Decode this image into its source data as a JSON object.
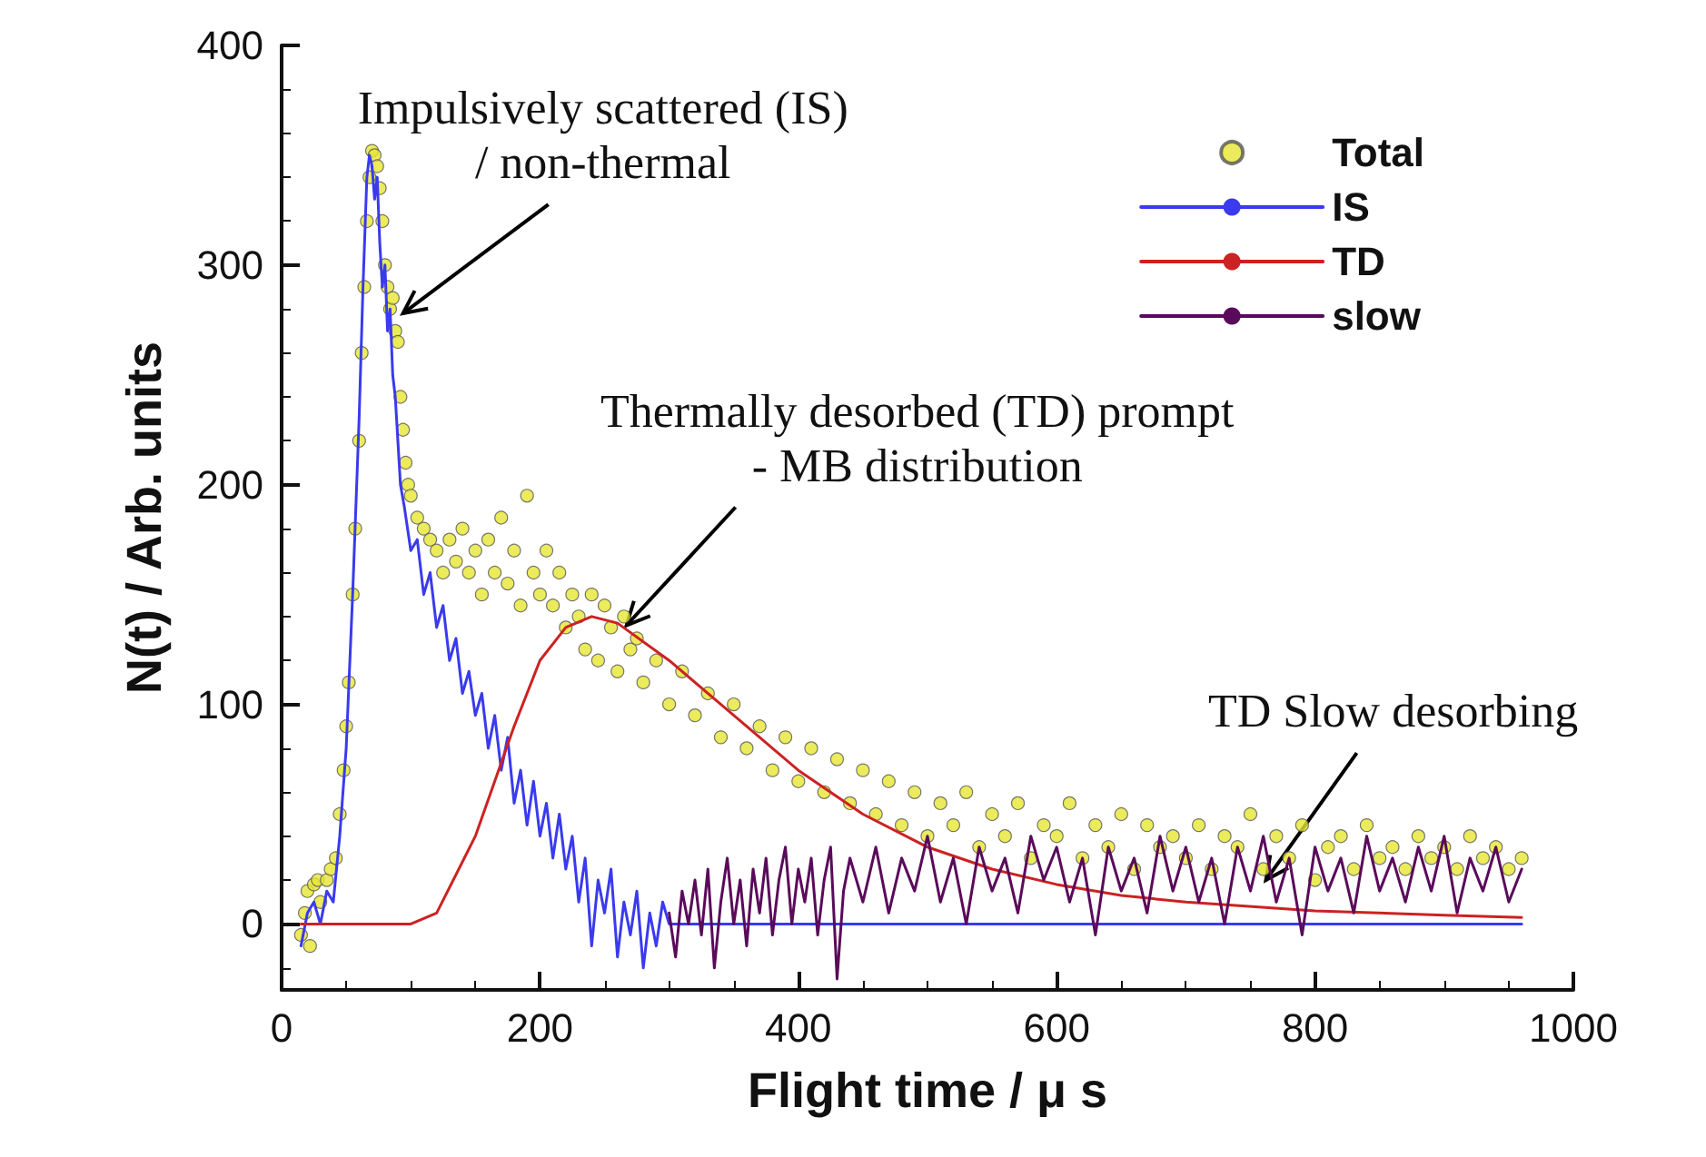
{
  "chart_data": {
    "type": "line",
    "xlabel": "Flight time / μ s",
    "ylabel": "N(t) / Arb. units",
    "xlim": [
      0,
      1000
    ],
    "xticks": [
      0,
      200,
      400,
      600,
      800,
      1000
    ],
    "ylim": [
      -30,
      400
    ],
    "yticks": [
      0,
      100,
      200,
      300,
      400
    ],
    "grid": false,
    "legend": "top right",
    "marker": "none",
    "line_style": "solid",
    "annotations": [
      {
        "text": "Impulsively scattered (IS)\n/ non-thermal",
        "x": 94,
        "y": 278
      },
      {
        "text": "Thermally desorbed (TD) prompt\n- MB distribution",
        "x": 267,
        "y": 136
      },
      {
        "text": "TD Slow desorbing",
        "x": 762,
        "y": 20
      }
    ],
    "series": [
      {
        "name": "Total",
        "type": "scatter",
        "marker": "circle",
        "color": "#e6e632",
        "x": [
          15,
          18,
          20,
          22,
          25,
          28,
          30,
          35,
          38,
          42,
          45,
          48,
          50,
          52,
          55,
          57,
          60,
          62,
          64,
          66,
          68,
          70,
          72,
          74,
          76,
          78,
          80,
          82,
          84,
          86,
          88,
          90,
          92,
          94,
          96,
          98,
          100,
          105,
          110,
          115,
          120,
          125,
          130,
          135,
          140,
          145,
          150,
          155,
          160,
          165,
          170,
          175,
          180,
          185,
          190,
          195,
          200,
          205,
          210,
          215,
          220,
          225,
          230,
          235,
          240,
          245,
          250,
          255,
          260,
          265,
          270,
          275,
          280,
          290,
          300,
          310,
          320,
          330,
          340,
          350,
          360,
          370,
          380,
          390,
          400,
          410,
          420,
          430,
          440,
          450,
          460,
          470,
          480,
          490,
          500,
          510,
          520,
          530,
          540,
          550,
          560,
          570,
          580,
          590,
          600,
          610,
          620,
          630,
          640,
          650,
          660,
          670,
          680,
          690,
          700,
          710,
          720,
          730,
          740,
          750,
          760,
          770,
          780,
          790,
          800,
          810,
          820,
          830,
          840,
          850,
          860,
          870,
          880,
          890,
          900,
          910,
          920,
          930,
          940,
          950,
          960
        ],
        "values": [
          -5,
          5,
          15,
          -10,
          18,
          20,
          10,
          20,
          25,
          30,
          50,
          70,
          90,
          110,
          150,
          180,
          220,
          260,
          290,
          320,
          340,
          352,
          350,
          345,
          335,
          320,
          300,
          290,
          280,
          285,
          270,
          265,
          240,
          225,
          210,
          200,
          195,
          185,
          180,
          175,
          170,
          160,
          175,
          165,
          180,
          160,
          170,
          150,
          175,
          160,
          185,
          155,
          170,
          145,
          195,
          160,
          150,
          170,
          145,
          160,
          135,
          150,
          140,
          125,
          150,
          120,
          145,
          135,
          115,
          140,
          125,
          130,
          110,
          120,
          100,
          115,
          95,
          105,
          85,
          100,
          80,
          90,
          70,
          85,
          65,
          80,
          60,
          75,
          55,
          70,
          50,
          65,
          45,
          60,
          40,
          55,
          45,
          60,
          35,
          50,
          40,
          55,
          30,
          45,
          40,
          55,
          30,
          45,
          35,
          50,
          25,
          45,
          35,
          40,
          30,
          45,
          25,
          40,
          35,
          50,
          25,
          40,
          30,
          45,
          20,
          35,
          40,
          25,
          45,
          30,
          35,
          25,
          40,
          30,
          35,
          25,
          40,
          30,
          35,
          25,
          30
        ]
      },
      {
        "name": "IS",
        "color": "#3a3aee",
        "x": [
          15,
          20,
          25,
          30,
          35,
          40,
          45,
          50,
          55,
          60,
          63,
          66,
          68,
          70,
          72,
          74,
          76,
          78,
          80,
          82,
          84,
          86,
          88,
          90,
          92,
          95,
          100,
          105,
          110,
          115,
          120,
          125,
          130,
          135,
          140,
          145,
          150,
          155,
          160,
          165,
          170,
          175,
          180,
          185,
          190,
          195,
          200,
          205,
          210,
          215,
          220,
          225,
          230,
          235,
          240,
          245,
          250,
          255,
          260,
          265,
          270,
          275,
          280,
          285,
          290,
          295,
          300,
          400,
          500,
          600,
          700,
          800,
          900,
          960
        ],
        "values": [
          -10,
          5,
          10,
          0,
          15,
          10,
          40,
          80,
          150,
          230,
          290,
          340,
          350,
          345,
          330,
          340,
          310,
          290,
          300,
          270,
          280,
          250,
          240,
          220,
          200,
          190,
          170,
          175,
          150,
          160,
          135,
          145,
          120,
          130,
          105,
          115,
          95,
          105,
          80,
          95,
          70,
          85,
          55,
          70,
          45,
          65,
          40,
          55,
          30,
          50,
          25,
          40,
          10,
          30,
          -10,
          20,
          5,
          25,
          -15,
          10,
          -5,
          15,
          -20,
          5,
          -10,
          10,
          0,
          0,
          0,
          0,
          0,
          0,
          0,
          0
        ]
      },
      {
        "name": "TD",
        "color": "#cc2222",
        "x": [
          15,
          50,
          100,
          120,
          150,
          180,
          200,
          220,
          240,
          260,
          300,
          350,
          400,
          450,
          500,
          550,
          600,
          650,
          700,
          800,
          900,
          960
        ],
        "values": [
          0,
          0,
          0,
          5,
          40,
          90,
          120,
          135,
          140,
          137,
          120,
          95,
          70,
          50,
          35,
          25,
          18,
          13,
          10,
          6,
          4,
          3
        ]
      },
      {
        "name": "slow",
        "color": "#5a0a5a",
        "x": [
          300,
          305,
          310,
          315,
          320,
          325,
          330,
          335,
          340,
          345,
          350,
          355,
          360,
          365,
          370,
          375,
          380,
          385,
          390,
          395,
          400,
          405,
          410,
          415,
          420,
          425,
          430,
          435,
          440,
          450,
          460,
          470,
          480,
          490,
          500,
          510,
          520,
          530,
          540,
          550,
          560,
          570,
          580,
          590,
          600,
          610,
          620,
          630,
          640,
          650,
          660,
          670,
          680,
          690,
          700,
          710,
          720,
          730,
          740,
          750,
          760,
          770,
          780,
          790,
          800,
          810,
          820,
          830,
          840,
          850,
          860,
          870,
          880,
          890,
          900,
          910,
          920,
          930,
          940,
          950,
          960
        ],
        "values": [
          5,
          -15,
          15,
          0,
          20,
          -5,
          25,
          -20,
          10,
          30,
          0,
          20,
          -10,
          25,
          5,
          30,
          -5,
          20,
          35,
          0,
          25,
          10,
          30,
          -5,
          20,
          35,
          -25,
          15,
          30,
          10,
          35,
          5,
          30,
          15,
          40,
          10,
          30,
          0,
          35,
          15,
          30,
          5,
          40,
          20,
          35,
          10,
          30,
          -5,
          35,
          15,
          30,
          5,
          40,
          15,
          35,
          10,
          30,
          0,
          35,
          15,
          40,
          10,
          30,
          -5,
          35,
          15,
          30,
          5,
          40,
          15,
          30,
          10,
          35,
          15,
          40,
          5,
          30,
          15,
          35,
          10,
          25
        ]
      }
    ]
  }
}
